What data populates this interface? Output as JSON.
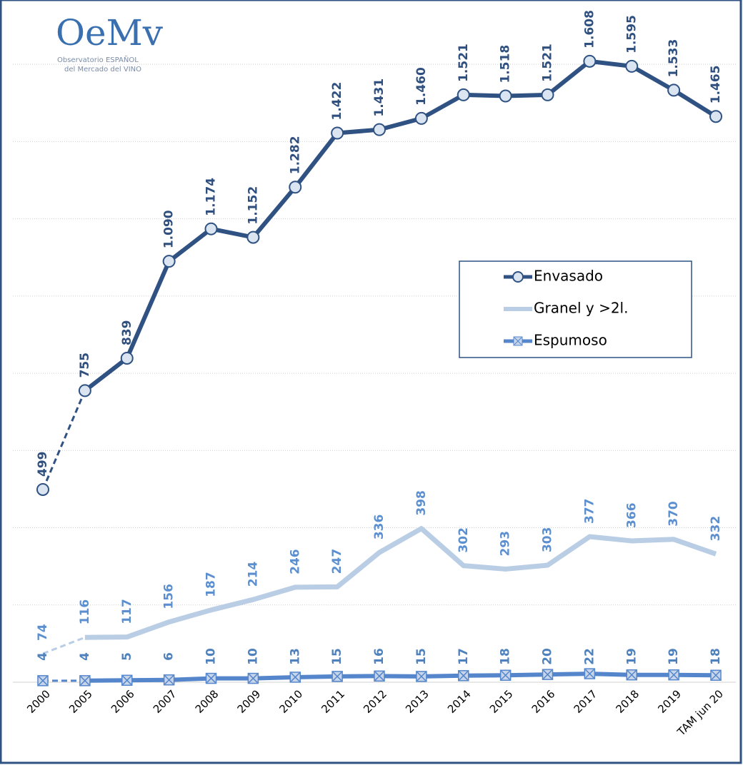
{
  "chart_data": {
    "type": "line",
    "logo": {
      "mark": "OeMv",
      "line1": "Observatorio ESPAÑOL",
      "line2": "del Mercado del VINO"
    },
    "categories": [
      "2000",
      "2005",
      "2006",
      "2007",
      "2008",
      "2009",
      "2010",
      "2011",
      "2012",
      "2013",
      "2014",
      "2015",
      "2016",
      "2017",
      "2018",
      "2019",
      "TAM jun 20"
    ],
    "ylim": [
      0,
      1750
    ],
    "yticks": [
      0,
      200,
      400,
      600,
      800,
      1000,
      1200,
      1400,
      1600
    ],
    "grid": true,
    "legend": "right",
    "series": [
      {
        "name": "Envasado",
        "color": "#2f5283",
        "label_color": "#2f4f7f",
        "marker": "circle",
        "dash_first": true,
        "values": [
          499,
          755,
          839,
          1090,
          1174,
          1152,
          1282,
          1422,
          1431,
          1460,
          1521,
          1518,
          1521,
          1608,
          1595,
          1533,
          1465
        ],
        "value_labels": [
          "499",
          "755",
          "839",
          "1.090",
          "1.174",
          "1.152",
          "1.282",
          "1.422",
          "1.431",
          "1.460",
          "1.521",
          "1.518",
          "1.521",
          "1.608",
          "1.595",
          "1.533",
          "1.465"
        ]
      },
      {
        "name": "Granel y >2l.",
        "color": "#b9cde5",
        "label_color": "#5b8fd0",
        "marker": "none",
        "dash_first": true,
        "values": [
          74,
          116,
          117,
          156,
          187,
          214,
          246,
          247,
          336,
          398,
          302,
          293,
          303,
          377,
          366,
          370,
          332
        ]
      },
      {
        "name": "Espumoso",
        "color": "#5586cc",
        "label_color": "#4f81bd",
        "marker": "xsquare",
        "dash_first": true,
        "values": [
          4,
          4,
          5,
          6,
          10,
          10,
          13,
          15,
          16,
          15,
          17,
          18,
          20,
          22,
          19,
          19,
          18
        ]
      }
    ]
  }
}
